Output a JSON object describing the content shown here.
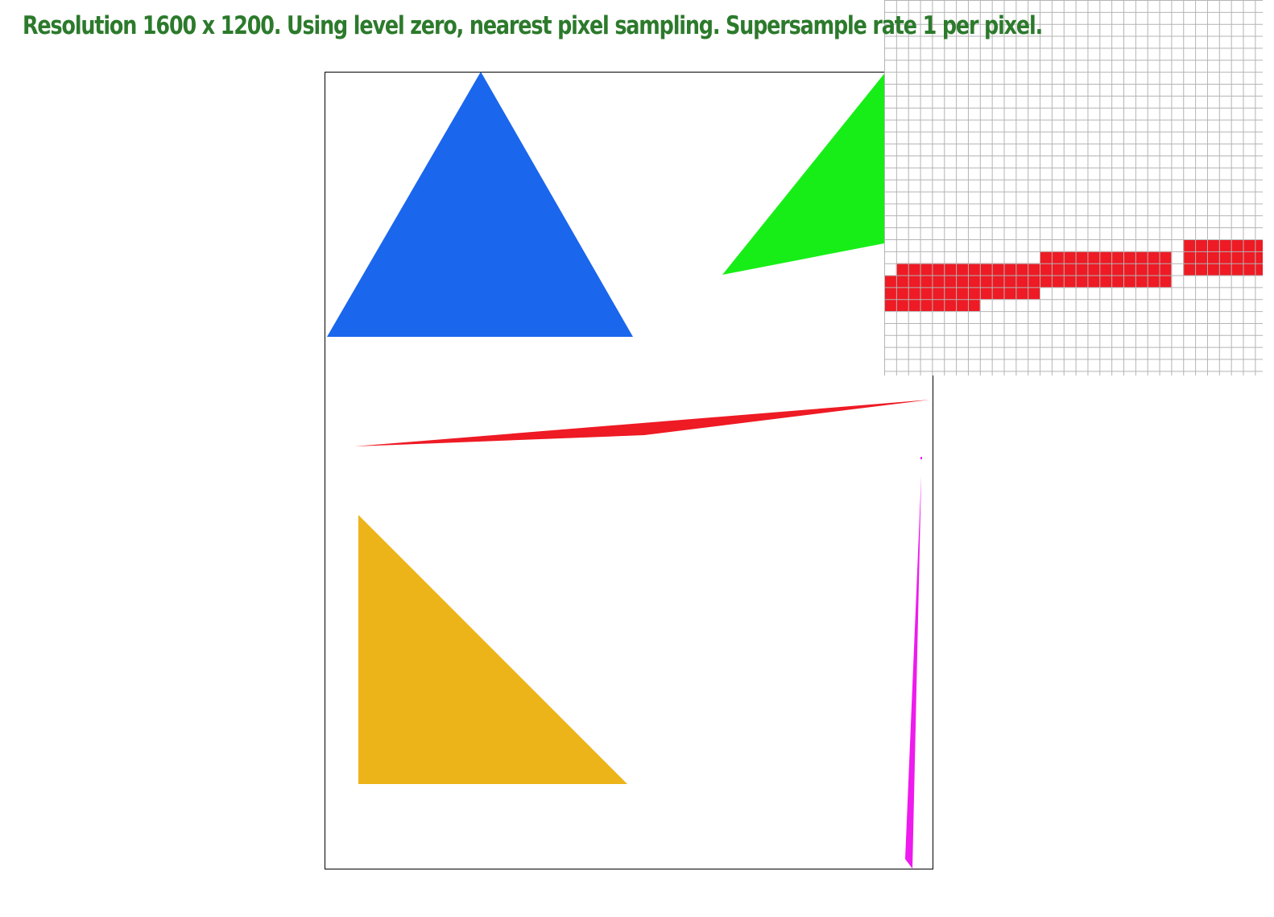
{
  "status": {
    "text": "Resolution 1600 x 1200. Using level zero, nearest pixel sampling. Supersample rate 1 per pixel."
  },
  "colors": {
    "status_text": "#2c7a2c",
    "canvas_border": "#000000",
    "background": "#ffffff",
    "zoom_grid": "#b4b4b4",
    "blue_triangle": "#1a66ed",
    "green_triangle": "#17ee17",
    "red_sliver": "#ee1a24",
    "yellow_triangle": "#edb419",
    "magenta_sliver": "#ee1aee"
  },
  "scene": {
    "shapes": [
      {
        "name": "blue-triangle",
        "color_key": "blue_triangle"
      },
      {
        "name": "green-triangle",
        "color_key": "green_triangle"
      },
      {
        "name": "red-sliver-triangle",
        "color_key": "red_sliver"
      },
      {
        "name": "yellow-triangle",
        "color_key": "yellow_triangle"
      },
      {
        "name": "magenta-sliver-triangle",
        "color_key": "magenta_sliver"
      }
    ]
  },
  "zoom": {
    "visible": true,
    "grid_visible": true
  }
}
